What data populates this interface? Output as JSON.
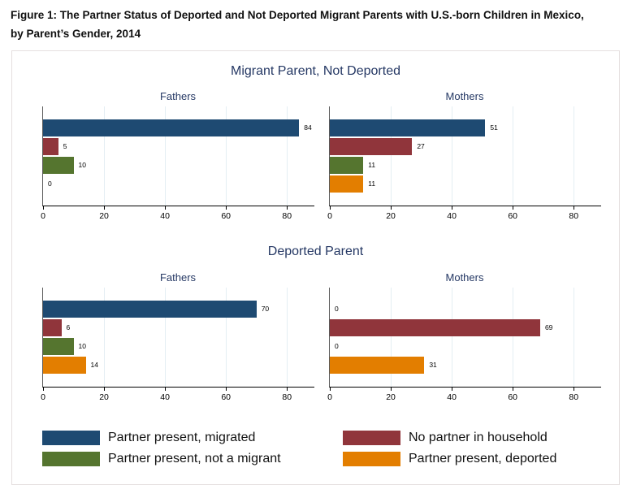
{
  "title": "Figure 1: The Partner Status of Deported and Not Deported Migrant Parents with U.S.-born Children in Mexico, by Parent’s Gender, 2014",
  "colors": {
    "heading_text": "#253864",
    "gridline": "#e4eef3",
    "y_axis": "#5a5a5a",
    "x_axis": "#000000",
    "figure_border": "#e5dfdf",
    "background": "#ffffff"
  },
  "chart_data": {
    "type": "bar",
    "orientation": "horizontal",
    "xlim": [
      0,
      89
    ],
    "xticks": [
      0,
      20,
      40,
      60,
      80
    ],
    "grid": true,
    "legend_position": "bottom",
    "series": [
      {
        "name": "Partner present, migrated",
        "color": "#1e4a72"
      },
      {
        "name": "No partner in household",
        "color": "#90353b"
      },
      {
        "name": "Partner present, not a migrant",
        "color": "#55752f"
      },
      {
        "name": "Partner present, deported",
        "color": "#e37e00"
      }
    ],
    "groups": [
      {
        "title": "Migrant Parent, Not Deported",
        "panels": [
          {
            "subtitle": "Fathers",
            "values": [
              84,
              5,
              10,
              0
            ]
          },
          {
            "subtitle": "Mothers",
            "values": [
              51,
              27,
              11,
              11
            ]
          }
        ]
      },
      {
        "title": "Deported Parent",
        "panels": [
          {
            "subtitle": "Fathers",
            "values": [
              70,
              6,
              10,
              14
            ]
          },
          {
            "subtitle": "Mothers",
            "values": [
              0,
              69,
              0,
              31
            ]
          }
        ]
      }
    ],
    "legend_columns": [
      [
        0,
        2
      ],
      [
        1,
        3
      ]
    ]
  }
}
